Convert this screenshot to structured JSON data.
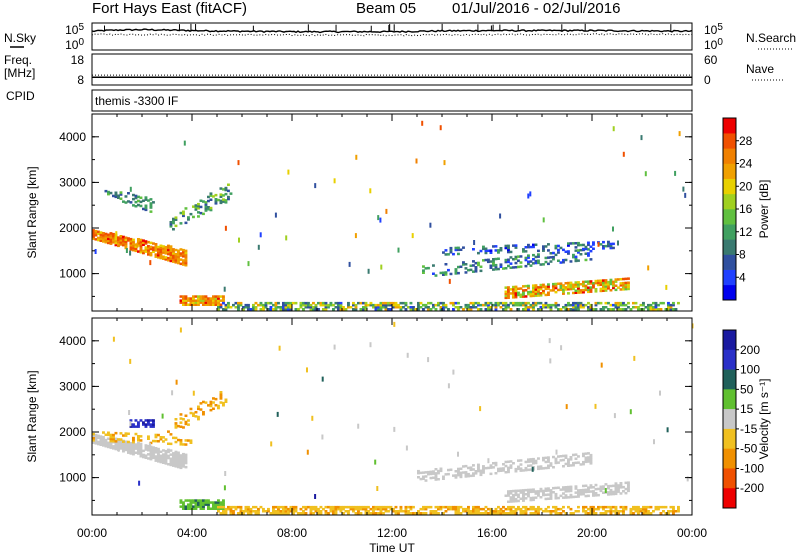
{
  "header": {
    "site": "Fort Hays East (fitACF)",
    "beam": "Beam 05",
    "date_range": "01/Jul/2016 - 02/Jul/2016"
  },
  "chart_data": [
    {
      "type": "line",
      "panel": "noise",
      "left_label": "N.Sky",
      "right_label": "N.Search",
      "y_scale": "log",
      "left_ticks": [
        "10^5",
        "10^0"
      ],
      "right_ticks": [
        "10^5",
        "10^0"
      ],
      "series": [
        {
          "name": "N.Sky",
          "style": "solid",
          "x": [
            "00:00",
            "01:00",
            "02:00",
            "03:00",
            "04:00",
            "05:00",
            "06:00",
            "08:00",
            "10:00",
            "12:00",
            "13:00",
            "14:00",
            "16:00",
            "18:00",
            "20:00",
            "22:00",
            "00:00"
          ],
          "y": [
            3000,
            5000,
            6000,
            5000,
            4000,
            3500,
            3000,
            2500,
            2500,
            2500,
            3000,
            3500,
            4000,
            4000,
            4000,
            3500,
            3000
          ]
        },
        {
          "name": "N.Search",
          "style": "dotted",
          "x": [
            "00:00",
            "04:00",
            "08:00",
            "12:00",
            "16:00",
            "20:00",
            "00:00"
          ],
          "y": [
            800,
            700,
            600,
            600,
            700,
            800,
            800
          ]
        }
      ]
    },
    {
      "type": "line",
      "panel": "freq",
      "left_label": "Freq. [MHz]",
      "right_label": "Nave",
      "left_ticks": [
        18,
        8
      ],
      "right_ticks": [
        60,
        0
      ],
      "series": [
        {
          "name": "Freq.",
          "style": "solid",
          "x": [
            "00:00",
            "00:00"
          ],
          "y": [
            10.5,
            10.5
          ]
        },
        {
          "name": "Nave",
          "style": "dotted",
          "x": [
            "00:00",
            "00:00"
          ],
          "y": [
            19,
            19
          ]
        }
      ]
    },
    {
      "type": "table",
      "panel": "cpid",
      "label": "CPID",
      "value": "themis -3300 IF"
    },
    {
      "type": "heatmap",
      "panel": "power",
      "ylabel": "Slant Range [km]",
      "yticks": [
        1000,
        2000,
        3000,
        4000
      ],
      "ylim": [
        180,
        4500
      ],
      "cbar_label": "Power [dB]",
      "cbar_ticks": [
        4,
        8,
        12,
        16,
        20,
        24,
        28
      ],
      "cbar_range": [
        0,
        32
      ],
      "regions": [
        {
          "t": [
            0.0,
            3.8
          ],
          "r_start": [
            1750,
            1150
          ],
          "thick": [
            200,
            350
          ],
          "val": [
            20,
            30
          ],
          "density": 0.85
        },
        {
          "t": [
            0.5,
            2.5
          ],
          "r_start": [
            2700,
            2300
          ],
          "thick": [
            200,
            300
          ],
          "val": [
            6,
            14
          ],
          "density": 0.3
        },
        {
          "t": [
            3.0,
            5.5
          ],
          "r_start": [
            1900,
            2600
          ],
          "thick": [
            300,
            400
          ],
          "val": [
            6,
            18
          ],
          "density": 0.35
        },
        {
          "t": [
            3.5,
            5.2
          ],
          "r_start": [
            300,
            300
          ],
          "thick": [
            200,
            200
          ],
          "val": [
            18,
            30
          ],
          "density": 0.9
        },
        {
          "t": [
            5.0,
            23.5
          ],
          "r_start": [
            200,
            200
          ],
          "thick": [
            150,
            150
          ],
          "val": [
            4,
            24
          ],
          "density": 0.6
        },
        {
          "t": [
            13.0,
            20.0
          ],
          "r_start": [
            900,
            1300
          ],
          "thick": [
            250,
            250
          ],
          "val": [
            4,
            14
          ],
          "density": 0.35
        },
        {
          "t": [
            16.5,
            21.5
          ],
          "r_start": [
            450,
            650
          ],
          "thick": [
            250,
            250
          ],
          "val": [
            14,
            30
          ],
          "density": 0.7
        },
        {
          "t": [
            14.0,
            21.0
          ],
          "r_start": [
            1400,
            1550
          ],
          "thick": [
            150,
            150
          ],
          "val": [
            2,
            12
          ],
          "density": 0.3
        }
      ]
    },
    {
      "type": "heatmap",
      "panel": "velocity",
      "xlabel": "Time UT",
      "ylabel": "Slant Range [km]",
      "xticks": [
        "00:00",
        "04:00",
        "08:00",
        "12:00",
        "16:00",
        "20:00",
        "00:00"
      ],
      "yticks": [
        1000,
        2000,
        3000,
        4000
      ],
      "ylim": [
        180,
        4500
      ],
      "cbar_label": "Velocity [m s⁻¹]",
      "cbar_ticks": [
        200,
        100,
        50,
        15,
        -15,
        -50,
        -100,
        -200
      ],
      "regions": [
        {
          "t": [
            0.0,
            3.8
          ],
          "r_start": [
            1750,
            1150
          ],
          "thick": [
            200,
            350
          ],
          "vel": [
            -14,
            14
          ],
          "density": 0.85
        },
        {
          "t": [
            0.0,
            4.0
          ],
          "r_start": [
            1800,
            1700
          ],
          "thick": [
            200,
            200
          ],
          "vel": [
            -60,
            -20
          ],
          "density": 0.3
        },
        {
          "t": [
            1.5,
            2.5
          ],
          "r_start": [
            2100,
            2100
          ],
          "thick": [
            150,
            150
          ],
          "vel": [
            120,
            230
          ],
          "density": 0.7
        },
        {
          "t": [
            3.0,
            5.3
          ],
          "r_start": [
            1900,
            2600
          ],
          "thick": [
            300,
            400
          ],
          "vel": [
            -80,
            -20
          ],
          "density": 0.3
        },
        {
          "t": [
            3.5,
            5.2
          ],
          "r_start": [
            300,
            300
          ],
          "thick": [
            200,
            200
          ],
          "vel": [
            20,
            60
          ],
          "density": 0.85
        },
        {
          "t": [
            5.0,
            23.5
          ],
          "r_start": [
            200,
            200
          ],
          "thick": [
            150,
            150
          ],
          "vel": [
            -60,
            -18
          ],
          "density": 0.65
        },
        {
          "t": [
            13.0,
            20.0
          ],
          "r_start": [
            900,
            1300
          ],
          "thick": [
            250,
            250
          ],
          "vel": [
            -14,
            14
          ],
          "density": 0.45
        },
        {
          "t": [
            16.5,
            21.5
          ],
          "r_start": [
            450,
            650
          ],
          "thick": [
            250,
            250
          ],
          "vel": [
            -14,
            14
          ],
          "density": 0.6
        }
      ]
    }
  ],
  "colors": {
    "power": [
      "#0000ee",
      "#2040ff",
      "#30509f",
      "#3a7a70",
      "#40a060",
      "#60c040",
      "#a0d020",
      "#e8d000",
      "#f0a000",
      "#f08000",
      "#f05000",
      "#ee0000"
    ],
    "velocity_bins": [
      "#1a1aa0",
      "#2a30c8",
      "#20605a",
      "#60c030",
      "#c8c8c8",
      "#f0c020",
      "#f09000",
      "#f05000",
      "#ee0000"
    ]
  }
}
